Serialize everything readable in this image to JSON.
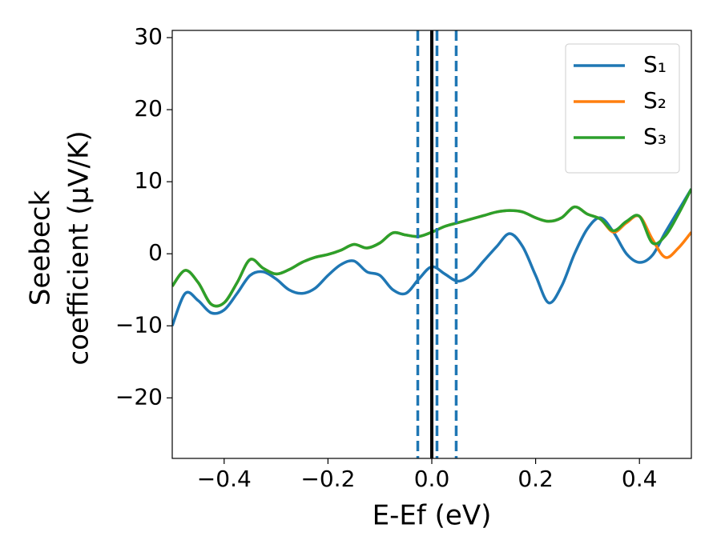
{
  "chart_data": {
    "type": "line",
    "ylabel": [
      "Seebeck",
      "coefficient  (μV/K)"
    ],
    "xlabel": "E-Ef (eV)",
    "x": [
      -0.5,
      -0.475,
      -0.45,
      -0.425,
      -0.4,
      -0.375,
      -0.35,
      -0.325,
      -0.3,
      -0.275,
      -0.25,
      -0.225,
      -0.2,
      -0.175,
      -0.15,
      -0.125,
      -0.1,
      -0.075,
      -0.05,
      -0.025,
      0,
      0.025,
      0.05,
      0.075,
      0.1,
      0.125,
      0.15,
      0.175,
      0.2,
      0.225,
      0.25,
      0.275,
      0.3,
      0.325,
      0.35,
      0.375,
      0.4,
      0.425,
      0.45,
      0.475,
      0.5
    ],
    "series": [
      {
        "name": "S₁",
        "color": "#1f77b4",
        "values": [
          -10,
          -5.5,
          -6.5,
          -8.2,
          -7.8,
          -5.5,
          -3,
          -2.5,
          -3.5,
          -5,
          -5.5,
          -4.8,
          -3,
          -1.5,
          -1,
          -2.5,
          -3,
          -5,
          -5.5,
          -3.5,
          -1.8,
          -2.8,
          -3.8,
          -3,
          -1,
          1,
          2.8,
          1,
          -3,
          -6.8,
          -4.5,
          0,
          3.5,
          5,
          3,
          0,
          -1.2,
          -0.2,
          3,
          6,
          9
        ]
      },
      {
        "name": "S₂",
        "color": "#ff7f0e",
        "values": [
          -4.5,
          -2.3,
          -4,
          -7,
          -6.8,
          -4,
          -0.8,
          -2,
          -2.8,
          -2.2,
          -1.2,
          -0.5,
          -0.1,
          0.5,
          1.3,
          0.8,
          1.5,
          2.9,
          2.6,
          2.4,
          3,
          3.8,
          4.3,
          4.8,
          5.3,
          5.8,
          6,
          5.8,
          5,
          4.5,
          5,
          6.5,
          5.5,
          4.8,
          3,
          4.3,
          5.2,
          2,
          -0.5,
          0.8,
          3
        ]
      },
      {
        "name": "S₃",
        "color": "#2ca02c",
        "values": [
          -4.5,
          -2.3,
          -4,
          -7,
          -6.8,
          -4,
          -0.8,
          -2,
          -2.8,
          -2.2,
          -1.2,
          -0.5,
          -0.1,
          0.5,
          1.3,
          0.8,
          1.5,
          2.9,
          2.6,
          2.4,
          3,
          3.8,
          4.3,
          4.8,
          5.3,
          5.8,
          6,
          5.8,
          5,
          4.5,
          5,
          6.5,
          5.5,
          4.8,
          3.2,
          4.5,
          5.2,
          1.5,
          2.5,
          5.5,
          9
        ]
      }
    ],
    "vlines": [
      {
        "x": -0.027,
        "color": "#1f77b4",
        "dashed": true
      },
      {
        "x": 0.01,
        "color": "#1f77b4",
        "dashed": true
      },
      {
        "x": 0.047,
        "color": "#1f77b4",
        "dashed": true
      },
      {
        "x": 0,
        "color": "#000000",
        "dashed": false
      }
    ],
    "xlim": [
      -0.5,
      0.5
    ],
    "xticks": [
      {
        "value": -0.4,
        "label": "−0.4"
      },
      {
        "value": -0.2,
        "label": "−0.2"
      },
      {
        "value": 0,
        "label": "0.0"
      },
      0.2,
      0.4
    ],
    "ylim": [
      -28.4,
      31
    ],
    "yticks": [
      {
        "value": -20,
        "label": "−20"
      },
      {
        "value": -10,
        "label": "−10"
      },
      0,
      10,
      20,
      30
    ],
    "legend": "upper right",
    "grid": false
  }
}
